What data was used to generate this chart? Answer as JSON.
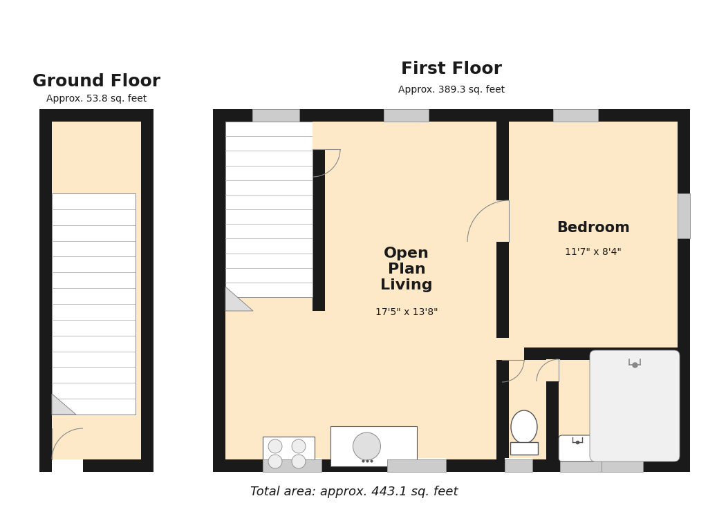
{
  "bg_color": "#ffffff",
  "wall_color": "#1a1a1a",
  "floor_color": "#fde8c8",
  "stair_line_color": "#aaaaaa",
  "fixture_color": "#ffffff",
  "fixture_edge": "#555555",
  "window_fill": "#cccccc",
  "ground_floor_title": "Ground Floor",
  "ground_floor_area": "Approx. 53.8 sq. feet",
  "first_floor_title": "First Floor",
  "first_floor_area": "Approx. 389.3 sq. feet",
  "total_area": "Total area: approx. 443.1 sq. feet",
  "room1_name": "Open\nPlan\nLiving",
  "room1_dim": "17'5\" x 13'8\"",
  "room2_name": "Bedroom",
  "room2_dim": "11'7\" x 8'4\""
}
